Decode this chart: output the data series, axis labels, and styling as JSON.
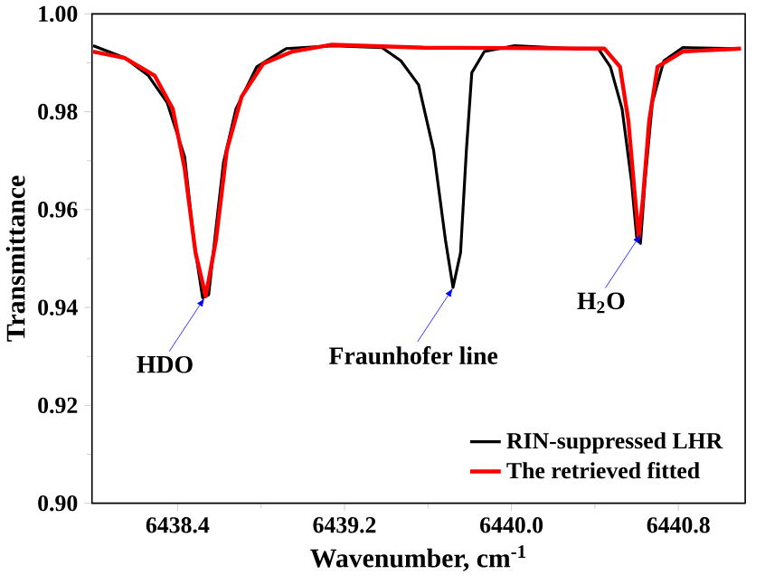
{
  "chart_data": {
    "type": "line",
    "xlabel": "Wavenumber, cm$^{-1}$",
    "ylabel": "Transmittance",
    "xlim": [
      6437.99,
      6441.12
    ],
    "ylim": [
      0.9,
      1.0
    ],
    "xticks": [
      6438.4,
      6439.2,
      {
        "value": 6440.0,
        "label": "6440.0"
      },
      6440.8
    ],
    "yticks": [
      {
        "value": 0.9,
        "label": "0.90"
      },
      0.92,
      0.94,
      0.96,
      0.98,
      {
        "value": 1.0,
        "label": "1.00"
      }
    ],
    "grid": false,
    "legend": "bottom right",
    "marker": "none",
    "line_style": "solid",
    "series": [
      {
        "name": "RIN-suppressed LHR",
        "color": "#000000",
        "x": [
          6437.995,
          6438.147,
          6438.26,
          6438.35,
          6438.434,
          6438.478,
          6438.52,
          6438.549,
          6438.584,
          6438.62,
          6438.68,
          6438.78,
          6438.92,
          6439.15,
          6439.38,
          6439.47,
          6439.555,
          6439.627,
          6439.684,
          6439.72,
          6439.756,
          6439.784,
          6439.81,
          6439.87,
          6440.015,
          6440.3,
          6440.416,
          6440.474,
          6440.53,
          6440.575,
          6440.6,
          6440.618,
          6440.64,
          6440.675,
          6440.73,
          6440.82,
          6441.09
        ],
        "values": [
          0.9935,
          0.991,
          0.9874,
          0.9819,
          0.9708,
          0.9537,
          0.942,
          0.9426,
          0.9561,
          0.9696,
          0.9806,
          0.9892,
          0.9929,
          0.9935,
          0.9931,
          0.9904,
          0.9855,
          0.9721,
          0.9537,
          0.9441,
          0.9512,
          0.9721,
          0.988,
          0.9923,
          0.9935,
          0.9929,
          0.9929,
          0.9892,
          0.9806,
          0.9659,
          0.9543,
          0.9531,
          0.9659,
          0.9819,
          0.9904,
          0.9931,
          0.9929
        ]
      },
      {
        "name": "The retrieved fitted",
        "color": "#ff0000",
        "x": [
          6437.995,
          6438.147,
          6438.29,
          6438.377,
          6438.434,
          6438.486,
          6438.535,
          6438.584,
          6438.636,
          6438.707,
          6438.81,
          6438.95,
          6439.14,
          6439.58,
          6440.445,
          6440.52,
          6440.56,
          6440.59,
          6440.61,
          6440.63,
          6440.66,
          6440.7,
          6440.82,
          6441.1
        ],
        "values": [
          0.9923,
          0.991,
          0.9874,
          0.9806,
          0.9684,
          0.9512,
          0.9423,
          0.9537,
          0.9721,
          0.9831,
          0.9898,
          0.9923,
          0.9937,
          0.9931,
          0.9929,
          0.9892,
          0.9782,
          0.9635,
          0.9543,
          0.9623,
          0.9782,
          0.9892,
          0.9923,
          0.9929
        ]
      }
    ],
    "annotations": [
      {
        "text": "HDO",
        "x": 6438.53,
        "y": 0.942
      },
      {
        "text": "Fraunhofer line",
        "x": 6439.72,
        "y": 0.944
      },
      {
        "text": "H$_{2}$O",
        "x": 6440.62,
        "y": 0.955
      }
    ]
  }
}
